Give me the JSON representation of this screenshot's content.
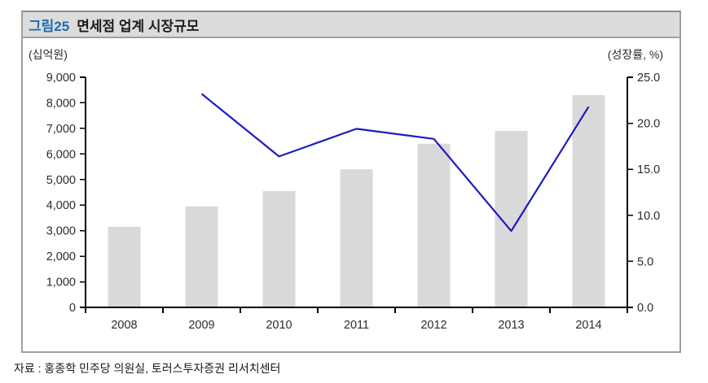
{
  "figure": {
    "label": "그림25",
    "title": "면세점 업계 시장규모"
  },
  "left_axis": {
    "unit": "(십억원)",
    "ticks": [
      "0",
      "1,000",
      "2,000",
      "3,000",
      "4,000",
      "5,000",
      "6,000",
      "7,000",
      "8,000",
      "9,000"
    ]
  },
  "right_axis": {
    "unit": "(성장률, %)",
    "ticks": [
      "0.0",
      "5.0",
      "10.0",
      "15.0",
      "20.0",
      "25.0"
    ]
  },
  "source": "자료 : 홍종학 민주당 의원실, 토러스투자증권 리서치센터",
  "chart_data": {
    "type": "bar",
    "subtype": "bar+line combo",
    "title": "면세점 업계 시장규모",
    "categories": [
      "2008",
      "2009",
      "2010",
      "2011",
      "2012",
      "2013",
      "2014"
    ],
    "series": [
      {
        "name": "시장규모(십억원)",
        "type": "bar",
        "axis": "left",
        "values": [
          3150,
          3950,
          4550,
          5400,
          6400,
          6900,
          8300
        ]
      },
      {
        "name": "성장률(%)",
        "type": "line",
        "axis": "right",
        "values": [
          null,
          23.2,
          16.4,
          19.4,
          18.3,
          8.3,
          21.8
        ]
      }
    ],
    "ylim_left": [
      0,
      9000
    ],
    "ylim_right": [
      0,
      25
    ],
    "grid": false,
    "legend": "none",
    "colors": {
      "bar": "#d9d9d9",
      "line": "#1c1cbe",
      "axis": "#000000",
      "tick_text": "#2b2b2b"
    }
  }
}
